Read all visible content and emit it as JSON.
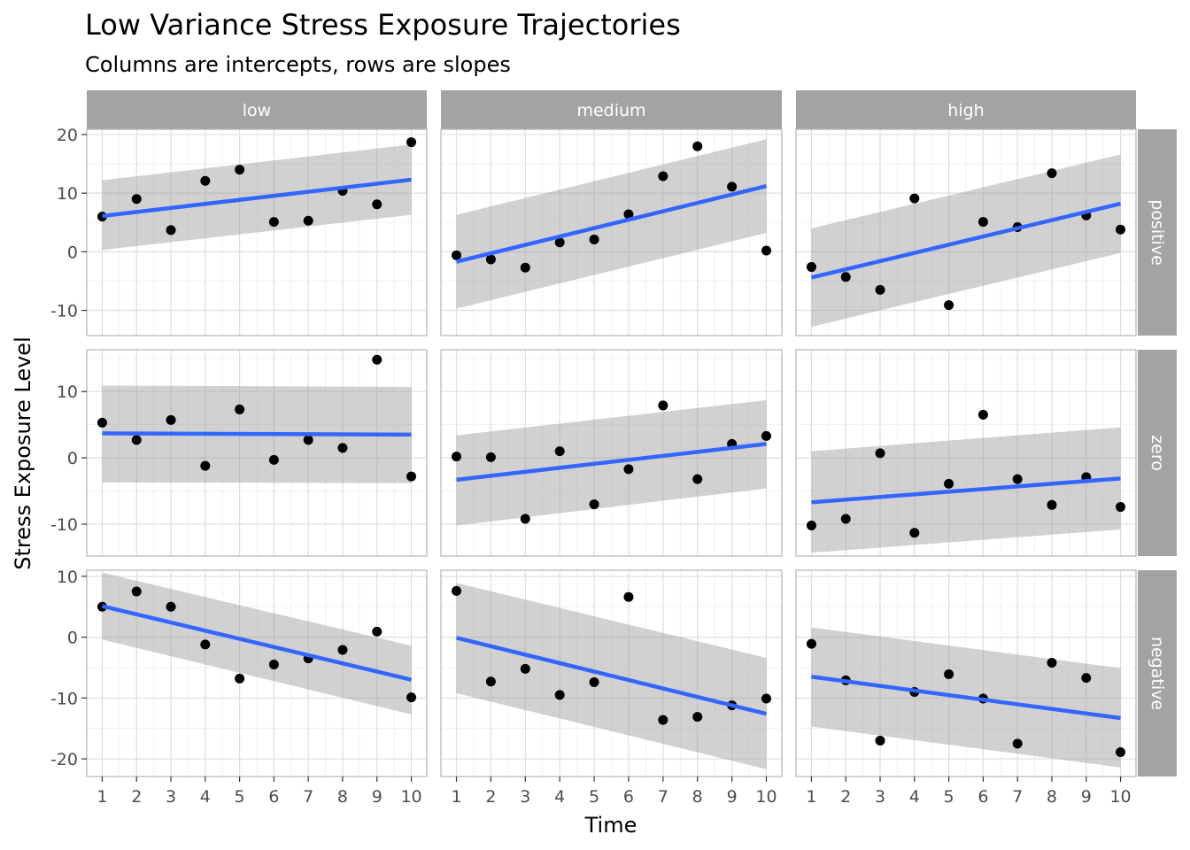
{
  "chart_data": {
    "type": "scatter",
    "title": "Low Variance Stress Exposure Trajectories",
    "subtitle": "Columns are intercepts, rows are slopes",
    "xlabel": "Time",
    "ylabel": "Stress Exposure Level",
    "x_ticks": [
      1,
      2,
      3,
      4,
      5,
      6,
      7,
      8,
      9,
      10
    ],
    "col_labels": [
      "low",
      "medium",
      "high"
    ],
    "row_labels": [
      "positive",
      "zero",
      "negative"
    ],
    "row_y_ticks": [
      [
        -10,
        0,
        10,
        20
      ],
      [
        -10,
        0,
        10
      ],
      [
        -20,
        -10,
        0,
        10
      ]
    ],
    "row_ylim": [
      [
        -14.3,
        20.9
      ],
      [
        -14.8,
        16.3
      ],
      [
        -22.9,
        11.0
      ]
    ],
    "xlim": [
      0.55,
      10.45
    ],
    "grid": true,
    "colors": {
      "points": "#000000",
      "fit_line": "#3366ff",
      "ribbon": "#999999",
      "strip": "#a3a3a3",
      "panel_border": "#b3b3b3",
      "grid_major": "#dedede",
      "grid_minor": "#efefef"
    },
    "panels": [
      {
        "row": "positive",
        "col": "low",
        "y": [
          6.0,
          9.0,
          3.7,
          12.1,
          14.0,
          5.1,
          5.3,
          10.4,
          8.1,
          18.7
        ],
        "fit": [
          6.1,
          12.3
        ],
        "band_lower": [
          0.3,
          6.3
        ],
        "band_upper": [
          12.2,
          18.3
        ]
      },
      {
        "row": "positive",
        "col": "medium",
        "y": [
          -0.6,
          -1.3,
          -2.7,
          1.6,
          2.1,
          6.4,
          12.9,
          18.0,
          11.1,
          0.2
        ],
        "fit": [
          -1.7,
          11.2
        ],
        "band_lower": [
          -9.7,
          3.2
        ],
        "band_upper": [
          6.3,
          19.2
        ]
      },
      {
        "row": "positive",
        "col": "high",
        "y": [
          -2.6,
          -4.3,
          -6.5,
          9.1,
          -9.1,
          5.1,
          4.2,
          13.4,
          6.2,
          3.8
        ],
        "fit": [
          -4.4,
          8.2
        ],
        "band_lower": [
          -12.8,
          -0.2
        ],
        "band_upper": [
          4.0,
          16.6
        ]
      },
      {
        "row": "zero",
        "col": "low",
        "y": [
          5.3,
          2.7,
          5.7,
          -1.2,
          7.3,
          -0.3,
          2.7,
          1.5,
          14.8,
          -2.8
        ],
        "fit": [
          3.7,
          3.5
        ],
        "band_lower": [
          -3.7,
          -3.8
        ],
        "band_upper": [
          10.9,
          10.7
        ]
      },
      {
        "row": "zero",
        "col": "medium",
        "y": [
          0.2,
          0.1,
          -9.2,
          1.0,
          -7.0,
          -1.7,
          7.9,
          -3.2,
          2.1,
          3.3
        ],
        "fit": [
          -3.3,
          2.1
        ],
        "band_lower": [
          -10.2,
          -4.6
        ],
        "band_upper": [
          3.4,
          8.7
        ]
      },
      {
        "row": "zero",
        "col": "high",
        "y": [
          -10.2,
          -9.2,
          0.7,
          -11.3,
          -3.9,
          6.5,
          -3.2,
          -7.1,
          -2.9,
          -7.4
        ],
        "fit": [
          -6.7,
          -3.1
        ],
        "band_lower": [
          -14.3,
          -10.8
        ],
        "band_upper": [
          1.0,
          4.6
        ]
      },
      {
        "row": "negative",
        "col": "low",
        "y": [
          5.0,
          7.5,
          5.0,
          -1.2,
          -6.8,
          -4.5,
          -3.5,
          -2.1,
          0.9,
          -9.9
        ],
        "fit": [
          5.1,
          -7.0
        ],
        "band_lower": [
          -0.4,
          -12.7
        ],
        "band_upper": [
          10.6,
          -1.4
        ]
      },
      {
        "row": "negative",
        "col": "medium",
        "y": [
          7.6,
          -7.3,
          -5.2,
          -9.5,
          -7.4,
          6.6,
          -13.6,
          -13.1,
          -11.2,
          -10.1
        ],
        "fit": [
          -0.1,
          -12.6
        ],
        "band_lower": [
          -9.2,
          -21.7
        ],
        "band_upper": [
          8.9,
          -3.4
        ]
      },
      {
        "row": "negative",
        "col": "high",
        "y": [
          -1.1,
          -7.1,
          -17.0,
          -9.0,
          -6.1,
          -10.1,
          -17.5,
          -4.2,
          -6.7,
          -18.9
        ],
        "fit": [
          -6.5,
          -13.3
        ],
        "band_lower": [
          -14.7,
          -21.4
        ],
        "band_upper": [
          1.6,
          -5.1
        ]
      }
    ]
  }
}
